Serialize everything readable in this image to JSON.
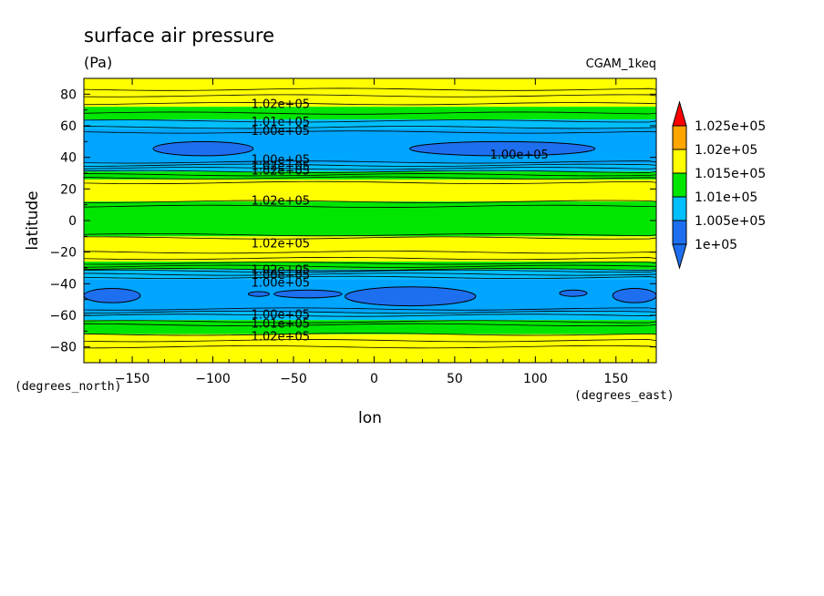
{
  "chart_data": {
    "type": "heatmap",
    "title": "surface air pressure",
    "units": "(Pa)",
    "dataset": "CGAM_1keq",
    "xlabel": "lon",
    "ylabel": "latitude",
    "xunits": "(degrees_east)",
    "yunits": "(degrees_north)",
    "xlim": [
      -180,
      175
    ],
    "ylim": [
      -90,
      90
    ],
    "xticks": [
      -150,
      -100,
      -50,
      0,
      50,
      100,
      150
    ],
    "yticks": [
      -80,
      -60,
      -40,
      -20,
      0,
      20,
      40,
      60,
      80
    ],
    "levels": [
      {
        "label": "1e+05",
        "color": "#1e6ff0"
      },
      {
        "label": "1.005e+05",
        "color": "#00bfff"
      },
      {
        "label": "1.01e+05",
        "color": "#00e600"
      },
      {
        "label": "1.015e+05",
        "color": "#ffff00"
      },
      {
        "label": "1.02e+05",
        "color": "#ffa500"
      },
      {
        "label": "1.025e+05",
        "color": "#ff0000"
      }
    ],
    "colorbar_extend": "both",
    "bands": [
      {
        "lat_min": 80,
        "lat_max": 90,
        "color": "#ffff00"
      },
      {
        "lat_min": 72,
        "lat_max": 80,
        "color": "#ffff00"
      },
      {
        "lat_min": 64,
        "lat_max": 72,
        "color": "#00e600"
      },
      {
        "lat_min": 58,
        "lat_max": 64,
        "color": "#00bfff"
      },
      {
        "lat_min": 36,
        "lat_max": 58,
        "color": "#00a5ff"
      },
      {
        "lat_min": 31,
        "lat_max": 36,
        "color": "#00bfff"
      },
      {
        "lat_min": 26,
        "lat_max": 31,
        "color": "#00e600"
      },
      {
        "lat_min": 12,
        "lat_max": 26,
        "color": "#ffff00"
      },
      {
        "lat_min": -10,
        "lat_max": 12,
        "color": "#00e600"
      },
      {
        "lat_min": -26,
        "lat_max": -10,
        "color": "#ffff00"
      },
      {
        "lat_min": -31,
        "lat_max": -26,
        "color": "#00e600"
      },
      {
        "lat_min": -37,
        "lat_max": -31,
        "color": "#00bfff"
      },
      {
        "lat_min": -58,
        "lat_max": -37,
        "color": "#00a5ff"
      },
      {
        "lat_min": -63,
        "lat_max": -58,
        "color": "#00bfff"
      },
      {
        "lat_min": -72,
        "lat_max": -63,
        "color": "#00e600"
      },
      {
        "lat_min": -90,
        "lat_max": -72,
        "color": "#ffff00"
      }
    ],
    "cells": [
      {
        "lon_min": -137,
        "lon_max": -75,
        "lat_min": 41,
        "lat_max": 50
      },
      {
        "lon_min": 22,
        "lon_max": 137,
        "lat_min": 41,
        "lat_max": 50
      },
      {
        "lon_min": -180,
        "lon_max": -145,
        "lat_min": -52,
        "lat_max": -43
      },
      {
        "lon_min": -78,
        "lon_max": -65,
        "lat_min": -48,
        "lat_max": -45
      },
      {
        "lon_min": -62,
        "lon_max": -20,
        "lat_min": -49,
        "lat_max": -44
      },
      {
        "lon_min": -18,
        "lon_max": 63,
        "lat_min": -54,
        "lat_max": -42
      },
      {
        "lon_min": 115,
        "lon_max": 132,
        "lat_min": -48,
        "lat_max": -44
      },
      {
        "lon_min": 148,
        "lon_max": 175,
        "lat_min": -52,
        "lat_max": -43
      }
    ],
    "contour_lats": [
      83,
      79,
      74,
      68,
      63,
      59,
      56,
      37,
      35,
      33,
      31,
      29,
      27,
      24,
      12,
      9,
      -9,
      -11,
      -20,
      -24,
      -27,
      -29,
      -31,
      -32,
      -34,
      -36,
      -56,
      -58,
      -60,
      -64,
      -66,
      -72,
      -76,
      -80
    ],
    "contour_labels": [
      {
        "text": "1.02e+05",
        "lon": -58,
        "lat": 74
      },
      {
        "text": "1.01e+05",
        "lon": -58,
        "lat": 63
      },
      {
        "text": "1.00e+05",
        "lon": -58,
        "lat": 57
      },
      {
        "text": "1.00e+05",
        "lon": 90,
        "lat": 42
      },
      {
        "text": "1.00e+05",
        "lon": -58,
        "lat": 39
      },
      {
        "text": "1.02e+05",
        "lon": -58,
        "lat": 35
      },
      {
        "text": "1.02e+05",
        "lon": -58,
        "lat": 32
      },
      {
        "text": "1.02e+05",
        "lon": -58,
        "lat": 13
      },
      {
        "text": "1.02e+05",
        "lon": -58,
        "lat": -14
      },
      {
        "text": "1.02e+05",
        "lon": -58,
        "lat": -31
      },
      {
        "text": "1.00e+05",
        "lon": -58,
        "lat": -34
      },
      {
        "text": "1.00e+05",
        "lon": -58,
        "lat": -39
      },
      {
        "text": "1.00e+05",
        "lon": -58,
        "lat": -59
      },
      {
        "text": "1.01e+05",
        "lon": -58,
        "lat": -65
      },
      {
        "text": "1.02e+05",
        "lon": -58,
        "lat": -73
      }
    ],
    "colors": {
      "cell": "#1e6ff0"
    }
  }
}
